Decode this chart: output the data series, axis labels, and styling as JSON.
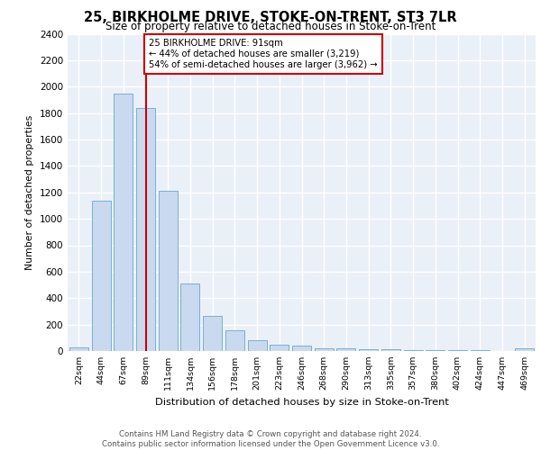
{
  "title": "25, BIRKHOLME DRIVE, STOKE-ON-TRENT, ST3 7LR",
  "subtitle": "Size of property relative to detached houses in Stoke-on-Trent",
  "xlabel": "Distribution of detached houses by size in Stoke-on-Trent",
  "ylabel": "Number of detached properties",
  "categories": [
    "22sqm",
    "44sqm",
    "67sqm",
    "89sqm",
    "111sqm",
    "134sqm",
    "156sqm",
    "178sqm",
    "201sqm",
    "223sqm",
    "246sqm",
    "268sqm",
    "290sqm",
    "313sqm",
    "335sqm",
    "357sqm",
    "380sqm",
    "402sqm",
    "424sqm",
    "447sqm",
    "469sqm"
  ],
  "values": [
    30,
    1140,
    1950,
    1840,
    1210,
    510,
    265,
    155,
    85,
    45,
    38,
    20,
    20,
    15,
    12,
    10,
    8,
    5,
    5,
    3,
    20
  ],
  "bar_color": "#c9d9f0",
  "bar_edge_color": "#7aafd4",
  "property_bin_index": 3,
  "red_line_color": "#cc0000",
  "annotation_text": "25 BIRKHOLME DRIVE: 91sqm\n← 44% of detached houses are smaller (3,219)\n54% of semi-detached houses are larger (3,962) →",
  "annotation_box_color": "#ffffff",
  "annotation_box_edge": "#cc0000",
  "footer_text": "Contains HM Land Registry data © Crown copyright and database right 2024.\nContains public sector information licensed under the Open Government Licence v3.0.",
  "ylim": [
    0,
    2400
  ],
  "bg_color": "#eaf0f8",
  "grid_color": "#ffffff",
  "yticks": [
    0,
    200,
    400,
    600,
    800,
    1000,
    1200,
    1400,
    1600,
    1800,
    2000,
    2200,
    2400
  ]
}
